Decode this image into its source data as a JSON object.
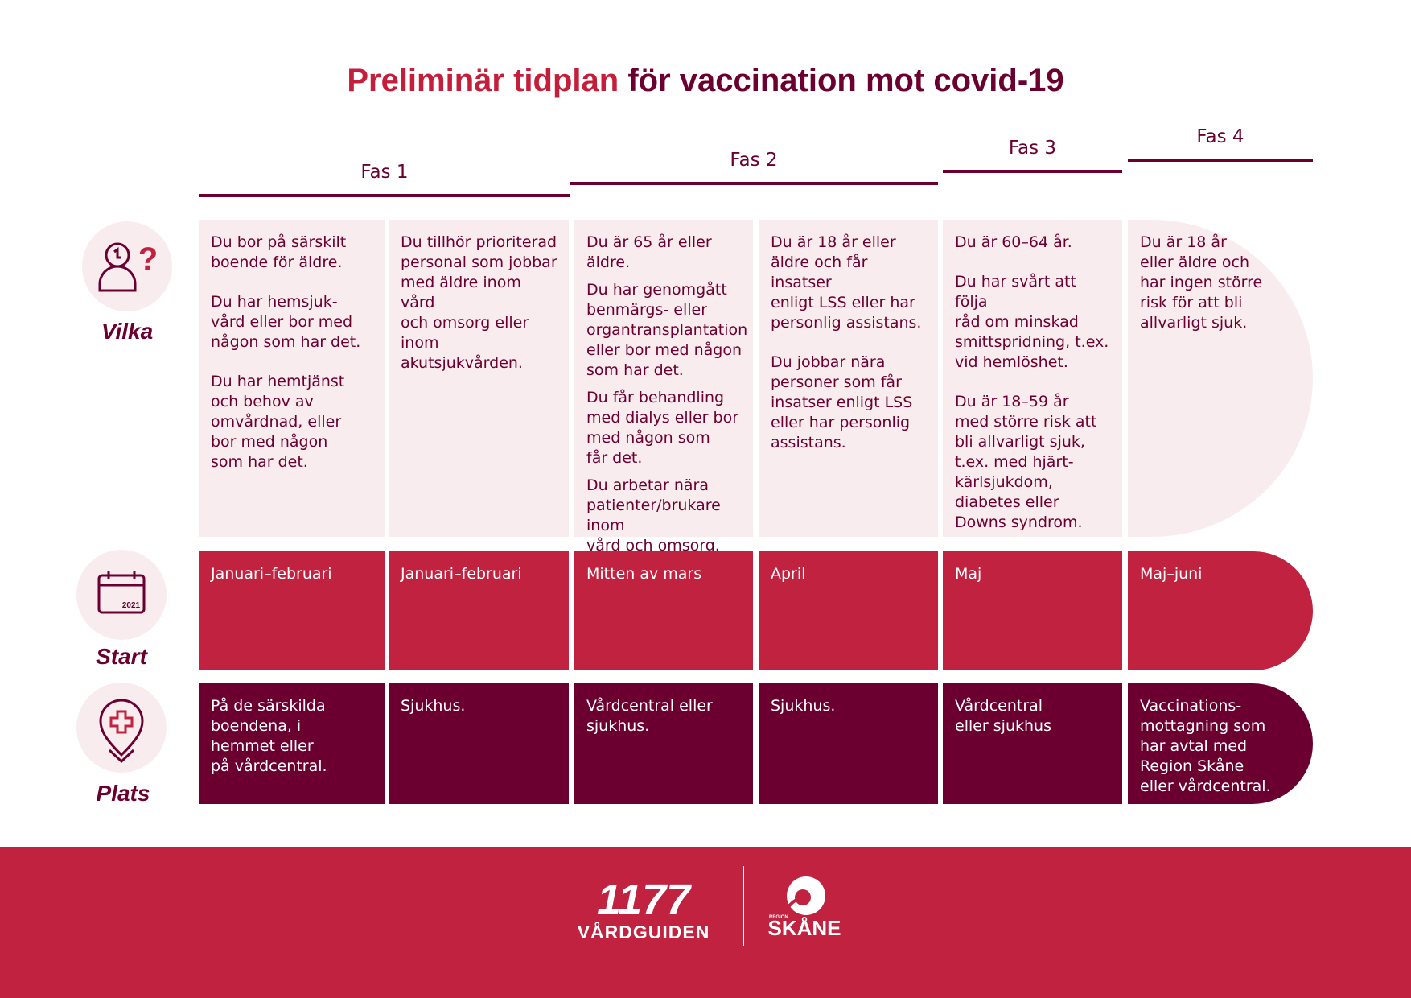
{
  "header": {
    "title_highlight": "Preliminär tidplan",
    "title_rest": "för vaccination mot covid-19"
  },
  "phases": [
    "Fas 1",
    "Fas 2",
    "Fas 3",
    "Fas 4"
  ],
  "row_labels": {
    "vilka": "Vilka",
    "start": "Start",
    "plats": "Plats"
  },
  "calendar_year": "2021",
  "columns": [
    {
      "vilka": [
        "Du bor på särskilt\nboende för äldre.",
        "Du har hemsjuk-\nvård eller bor med\nnågon som har det.",
        "Du har hemtjänst\noch behov av\nomvårdnad, eller\nbor med någon\nsom har det."
      ],
      "start": "Januari–februari",
      "plats": "På de särskilda\nboendena, i\nhemmet eller\npå vårdcentral."
    },
    {
      "vilka": [
        "Du tillhör prioriterad\npersonal som jobbar\nmed äldre inom vård\noch omsorg eller\ninom akutsjukvården."
      ],
      "start": "Januari–februari",
      "plats": "Sjukhus."
    },
    {
      "vilka": [
        "Du är 65 år eller äldre.",
        "Du har genomgått\nbenmärgs- eller\norgantransplantation\neller bor med någon\nsom har det.",
        "Du får behandling\nmed dialys eller bor\nmed någon som\nfår det.",
        "Du arbetar nära\npatienter/brukare inom\nvård och omsorg."
      ],
      "start": "Mitten av mars",
      "plats": "Vårdcentral eller\nsjukhus."
    },
    {
      "vilka": [
        "Du är 18 år eller\näldre och får insatser\nenligt LSS eller har\npersonlig assistans.",
        "Du jobbar nära\npersoner som får\ninsatser enligt LSS\neller har personlig\nassistans."
      ],
      "start": "April",
      "plats": "Sjukhus."
    },
    {
      "vilka": [
        "Du är 60–64 år.",
        "Du har svårt att följa\nråd om minskad\nsmittspridning, t.ex.\nvid hemlöshet.",
        "Du är 18–59 år\nmed större risk att\nbli allvarligt sjuk,\nt.ex. med hjärt-\nkärlsjukdom,\ndiabetes eller\nDowns syndrom."
      ],
      "start": "Maj",
      "plats": "Vårdcentral\neller sjukhus"
    },
    {
      "vilka": [
        "Du är 18 år\neller äldre och\nhar ingen större\nrisk för att bli\nallvarligt sjuk."
      ],
      "start": "Maj–juni",
      "plats": "Vaccinations-\nmottagning som\nhar avtal med\nRegion Skåne\neller vårdcentral."
    }
  ],
  "footer": {
    "logo1_number": "1177",
    "logo1_text": "VÅRDGUIDEN",
    "logo2_small": "REGION",
    "logo2_text": "SKÅNE"
  }
}
